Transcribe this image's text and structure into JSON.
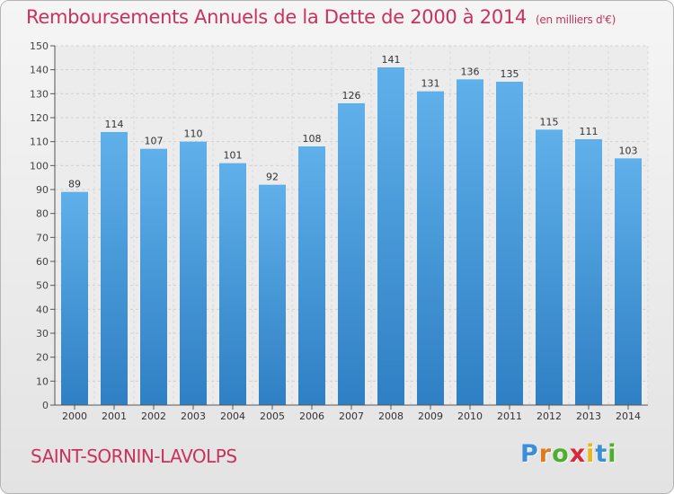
{
  "title": "Remboursements Annuels de la Dette de 2000 à 2014",
  "unit": "(en milliers d'€)",
  "commune": "SAINT-SORNIN-LAVOLPS",
  "logo": {
    "letters": [
      "P",
      "r",
      "o",
      "x",
      "i",
      "t",
      "i"
    ],
    "colors": [
      "#3a8fd8",
      "#e07a1f",
      "#4caf2e",
      "#d8283a",
      "#e8b81a",
      "#3a8fd8",
      "#4caf2e"
    ]
  },
  "colors": {
    "bar_top": "#5fb0ea",
    "bar_bottom": "#2f7fc4",
    "text": "#c8325c",
    "axis": "#555555"
  },
  "chart_data": {
    "type": "bar",
    "categories": [
      "2000",
      "2001",
      "2002",
      "2003",
      "2004",
      "2005",
      "2006",
      "2007",
      "2008",
      "2009",
      "2010",
      "2011",
      "2012",
      "2013",
      "2014"
    ],
    "values": [
      89,
      114,
      107,
      110,
      101,
      92,
      108,
      126,
      141,
      131,
      136,
      135,
      115,
      111,
      103
    ],
    "ylim": [
      0,
      150
    ],
    "yticks": [
      0,
      10,
      20,
      30,
      40,
      50,
      60,
      70,
      80,
      90,
      100,
      110,
      120,
      130,
      140,
      150
    ],
    "grid": true
  }
}
